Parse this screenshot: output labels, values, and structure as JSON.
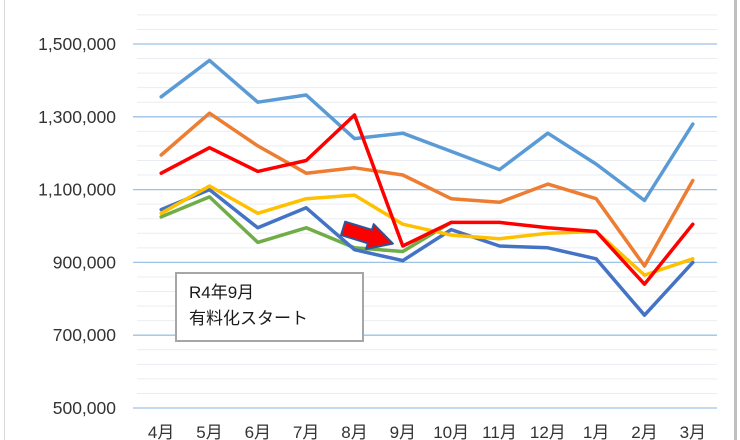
{
  "chart_data": {
    "type": "line",
    "title": "",
    "categories": [
      "4月",
      "5月",
      "6月",
      "7月",
      "8月",
      "9月",
      "10月",
      "11月",
      "12月",
      "1月",
      "2月",
      "3月"
    ],
    "series": [
      {
        "name": "series-lightblue",
        "color": "#5B9BD5",
        "values": [
          1355000,
          1455000,
          1340000,
          1360000,
          1240000,
          1255000,
          1205000,
          1155000,
          1255000,
          1170000,
          1070000,
          1280000
        ]
      },
      {
        "name": "series-orange",
        "color": "#ED7D31",
        "values": [
          1195000,
          1310000,
          1220000,
          1145000,
          1160000,
          1140000,
          1075000,
          1065000,
          1115000,
          1075000,
          890000,
          1125000
        ]
      },
      {
        "name": "series-green",
        "color": "#70AD47",
        "values": [
          1025000,
          1080000,
          955000,
          995000,
          940000,
          930000,
          1010000,
          null,
          null,
          null,
          null,
          null
        ]
      },
      {
        "name": "series-darkblue",
        "color": "#4472C4",
        "values": [
          1045000,
          1100000,
          995000,
          1050000,
          935000,
          905000,
          990000,
          945000,
          940000,
          910000,
          755000,
          900000
        ]
      },
      {
        "name": "series-yellow",
        "color": "#FFC000",
        "values": [
          1035000,
          1110000,
          1035000,
          1075000,
          1085000,
          1005000,
          975000,
          965000,
          980000,
          985000,
          865000,
          910000
        ]
      },
      {
        "name": "series-red",
        "color": "#FF0000",
        "values": [
          1145000,
          1215000,
          1150000,
          1180000,
          1305000,
          945000,
          1010000,
          1010000,
          995000,
          985000,
          840000,
          1005000
        ]
      }
    ],
    "y_axis": {
      "min": 500000,
      "max": 1580000,
      "major_unit": 200000,
      "minor_unit": 40000,
      "tick_values": [
        1500000,
        1300000,
        1100000,
        900000,
        700000,
        500000
      ],
      "tick_labels": [
        "1,500,000",
        "1,300,000",
        "1,100,000",
        "900,000",
        "700,000",
        "500,000"
      ]
    },
    "x_axis": {
      "labels": [
        "4月",
        "5月",
        "6月",
        "7月",
        "8月",
        "9月",
        "10月",
        "11月",
        "12月",
        "1月",
        "2月",
        "3月"
      ]
    },
    "grid": {
      "major_color": "#9DC3E6",
      "minor_color": "#E9EDF2",
      "on": true
    },
    "legend": "none",
    "line_width": 3.5,
    "text_color": "#333333"
  },
  "annotation": {
    "line1": "R4年9月",
    "line2": "有料化スタート"
  },
  "arrow": {
    "label": "highlight-arrow",
    "fill": "#FF0000",
    "stroke": "#2E5597"
  }
}
